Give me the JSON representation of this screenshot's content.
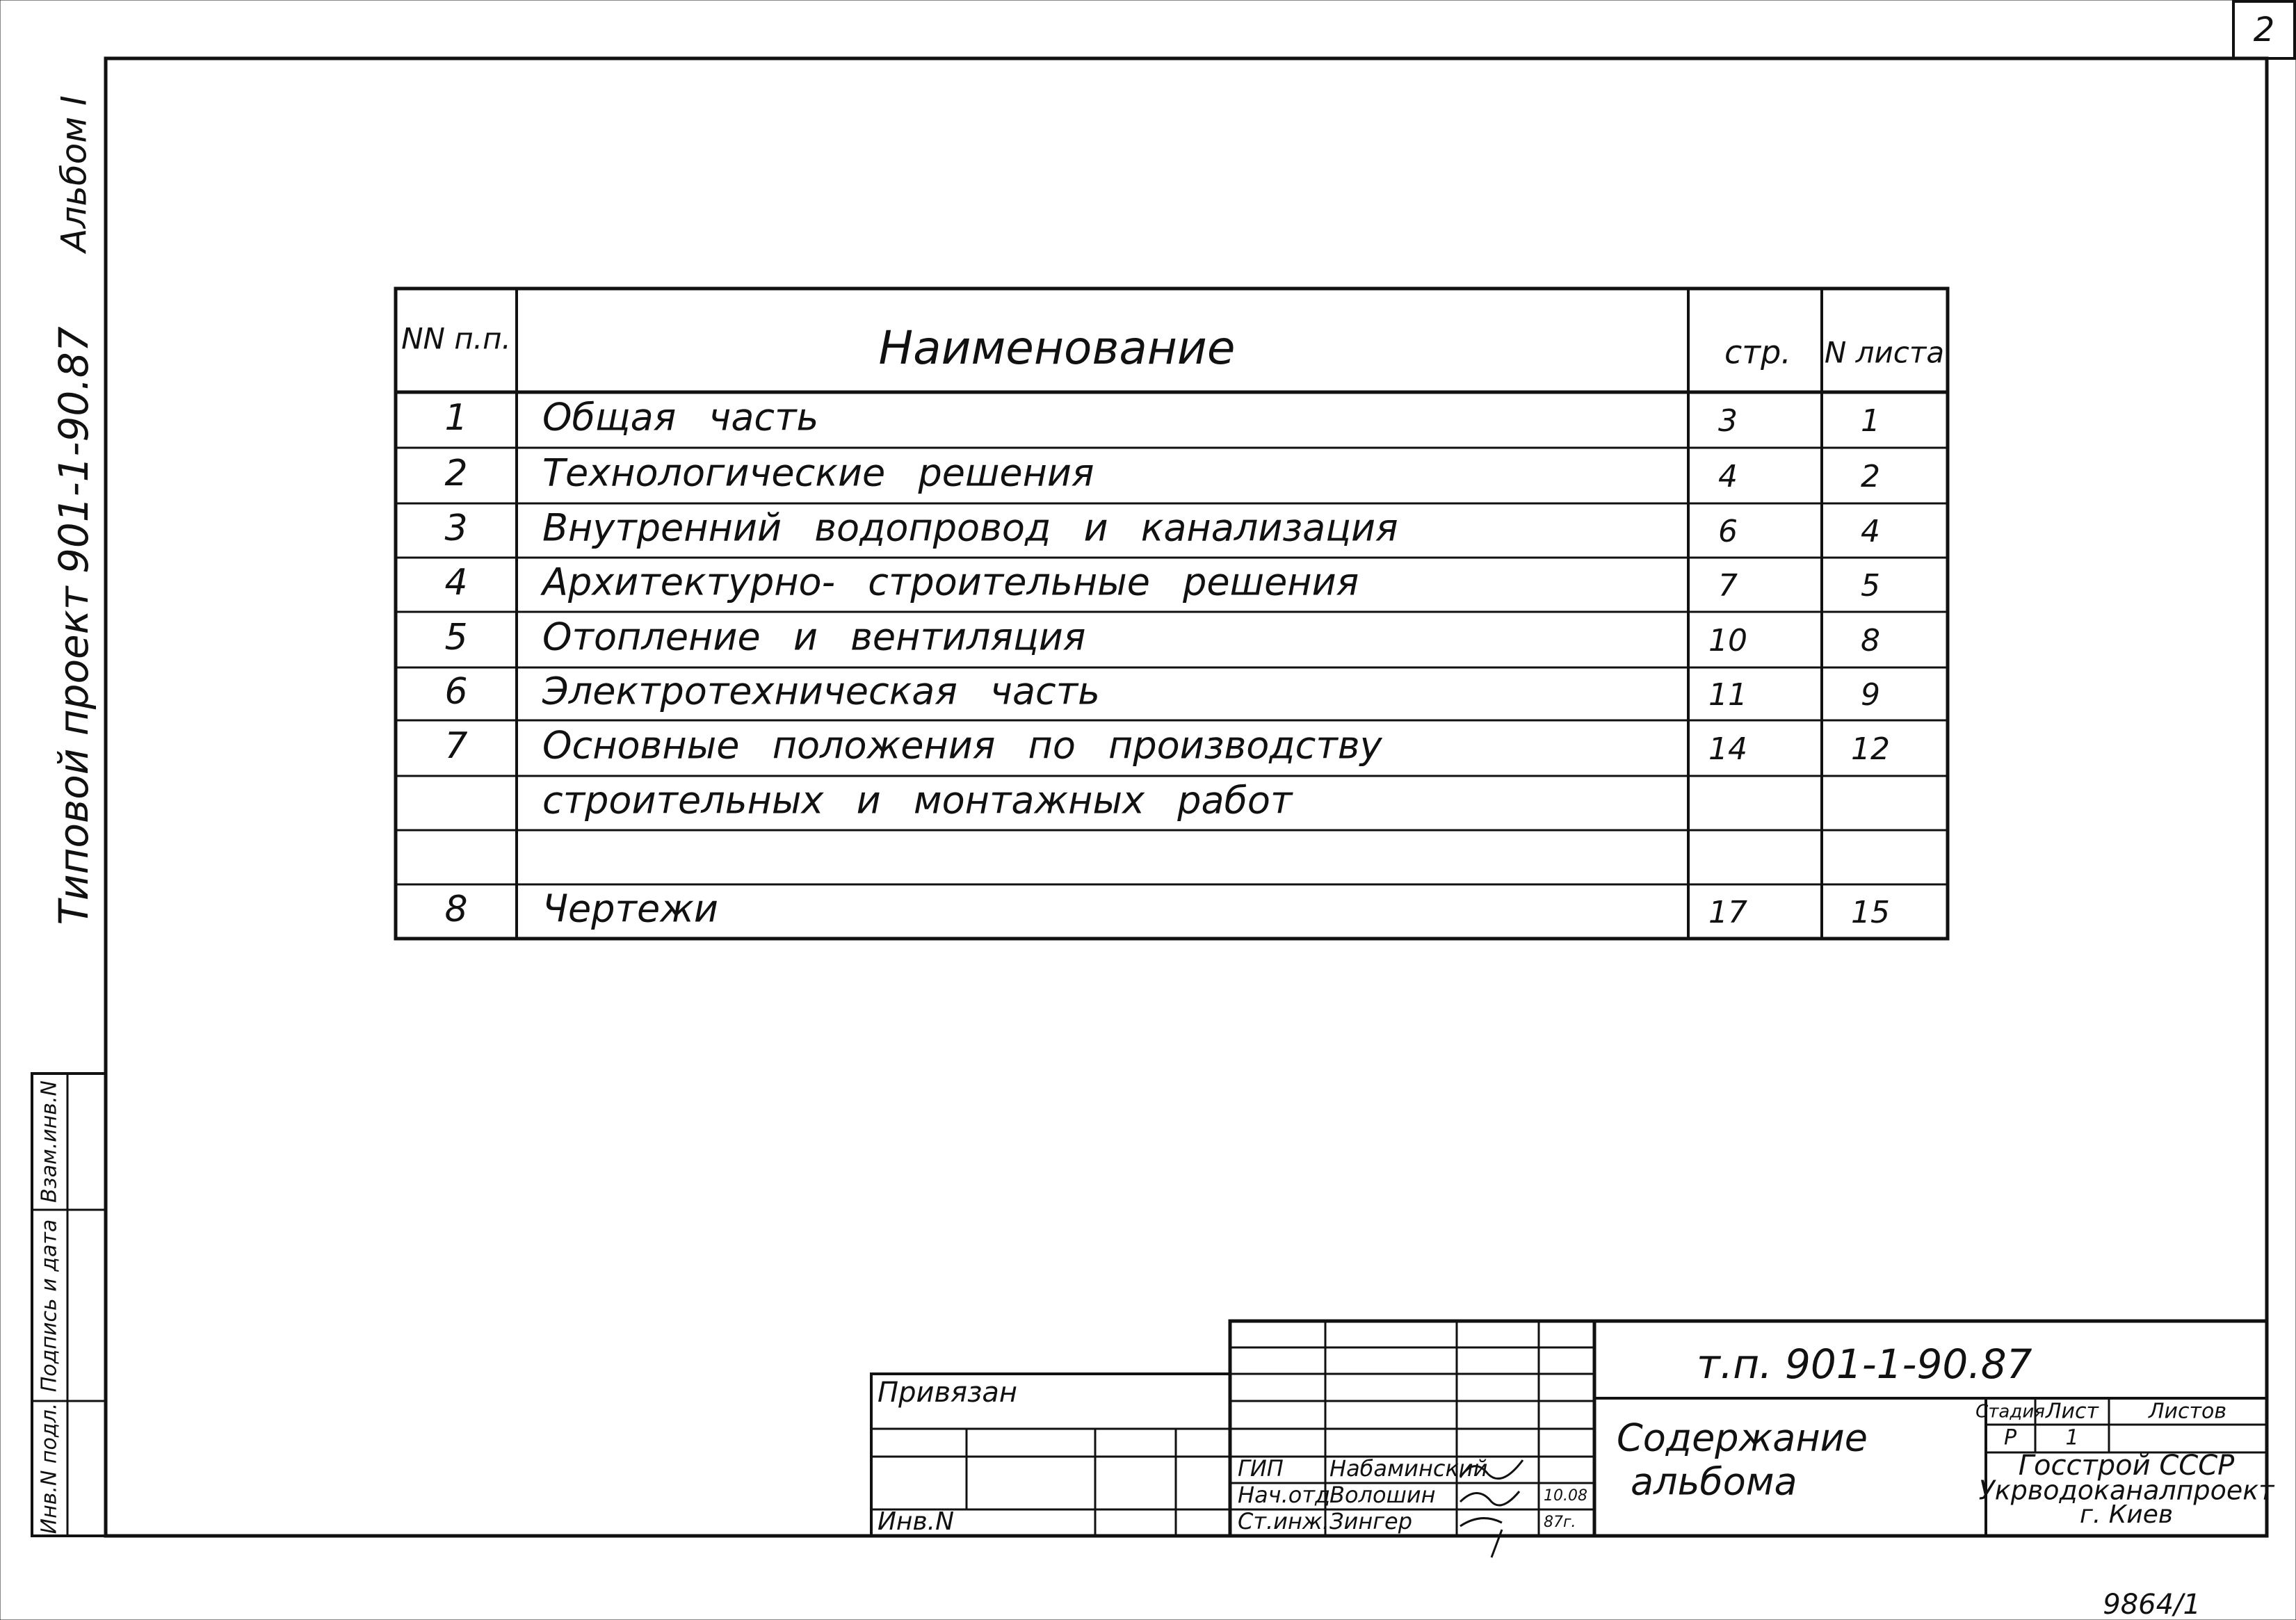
{
  "page_number": "2",
  "side_title": {
    "album": "Альбом I",
    "project": "Типовой проект 901-1-90.87"
  },
  "side_stamp": [
    "Инв.N подл.",
    "Подпись и дата",
    "Взам.инв.N"
  ],
  "table": {
    "header": [
      "NN п.п.",
      "Наименование",
      "стр.",
      "N листа"
    ],
    "rows": [
      {
        "no": "1",
        "name": [
          "Общая часть"
        ],
        "page": "3",
        "sheet": "1"
      },
      {
        "no": "2",
        "name": [
          "Технологические решения"
        ],
        "page": "4",
        "sheet": "2"
      },
      {
        "no": "3",
        "name": [
          "Внутренний водопровод и канализация"
        ],
        "page": "6",
        "sheet": "4"
      },
      {
        "no": "4",
        "name": [
          "Архитектурно- строительные решения"
        ],
        "page": "7",
        "sheet": "5"
      },
      {
        "no": "5",
        "name": [
          "Отопление и вентиляция"
        ],
        "page": "10",
        "sheet": "8"
      },
      {
        "no": "6",
        "name": [
          "Электротехническая часть"
        ],
        "page": "11",
        "sheet": "9"
      },
      {
        "no": "7",
        "name": [
          "Основные положения по производству",
          "строительных и монтажных работ"
        ],
        "page": "14",
        "sheet": "12"
      },
      {
        "no": "8",
        "name": [
          "Чертежи"
        ],
        "page": "17",
        "sheet": "15"
      }
    ]
  },
  "title_block": {
    "attached": "Привязан",
    "inventory": "Инв.N",
    "signatures": [
      {
        "role": "ГИП",
        "name": "Набаминский"
      },
      {
        "role": "Нач.отд",
        "name": "Волошин",
        "date": "10.08"
      },
      {
        "role": "Ст.инж.",
        "name": "Зингер",
        "date": "87г."
      }
    ],
    "code": "т.п. 901-1-90.87",
    "sheet_title": [
      "Содержание",
      "альбома"
    ],
    "stage_headers": [
      "Стадия",
      "Лист",
      "Листов"
    ],
    "stage": "Р",
    "sheet": "1",
    "organization": [
      "Госстрой СССР",
      "Укрводоканалпроект",
      "г. Киев"
    ]
  },
  "archive_number": "9864/1"
}
